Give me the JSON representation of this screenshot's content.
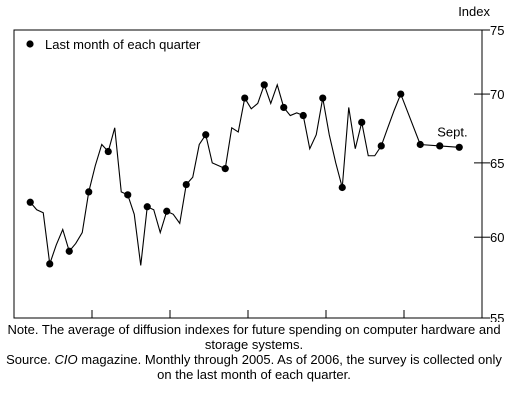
{
  "chart_data": {
    "type": "line",
    "y_label": "Index",
    "legend": "Last month of each quarter",
    "legend_corner": "top-left",
    "annotation": "Sept.",
    "color": "#000000",
    "log_scale": true,
    "x": [
      2001.2083,
      2001.2917,
      2001.375,
      2001.4583,
      2001.5417,
      2001.625,
      2001.7083,
      2001.7917,
      2001.875,
      2001.9583,
      2002.0417,
      2002.125,
      2002.2083,
      2002.2917,
      2002.375,
      2002.4583,
      2002.5417,
      2002.625,
      2002.7083,
      2002.7917,
      2002.875,
      2002.9583,
      2003.0417,
      2003.125,
      2003.2083,
      2003.2917,
      2003.375,
      2003.4583,
      2003.5417,
      2003.625,
      2003.7083,
      2003.7917,
      2003.875,
      2003.9583,
      2004.0417,
      2004.125,
      2004.2083,
      2004.2917,
      2004.375,
      2004.4583,
      2004.5417,
      2004.625,
      2004.7083,
      2004.7917,
      2004.875,
      2004.9583,
      2005.0417,
      2005.125,
      2005.2083,
      2005.2917,
      2005.375,
      2005.4583,
      2005.5417,
      2005.625,
      2005.7083,
      2005.7917,
      2005.875,
      2005.9583,
      2006.2083,
      2006.4583,
      2006.7083
    ],
    "values": [
      62.3,
      61.8,
      61.6,
      58.3,
      59.5,
      60.5,
      59.1,
      59.6,
      60.3,
      63.0,
      64.8,
      66.3,
      65.8,
      67.5,
      63.0,
      62.8,
      61.5,
      58.2,
      62.0,
      61.8,
      60.3,
      61.7,
      61.5,
      60.9,
      63.5,
      64.0,
      66.3,
      67.0,
      65.0,
      64.8,
      64.6,
      67.5,
      67.2,
      69.7,
      68.9,
      69.3,
      70.7,
      69.3,
      70.7,
      69.0,
      68.4,
      68.6,
      68.4,
      66.0,
      67.0,
      69.7,
      67.0,
      65.0,
      63.3,
      69.0,
      66.0,
      67.9,
      65.5,
      65.5,
      66.2,
      67.5,
      68.8,
      70.0,
      66.3,
      66.2,
      66.1
    ],
    "marked": [
      true,
      false,
      false,
      true,
      false,
      false,
      true,
      false,
      false,
      true,
      false,
      false,
      true,
      false,
      false,
      true,
      false,
      false,
      true,
      false,
      false,
      true,
      false,
      false,
      true,
      false,
      false,
      true,
      false,
      false,
      true,
      false,
      false,
      true,
      false,
      false,
      true,
      false,
      false,
      true,
      false,
      false,
      true,
      false,
      false,
      true,
      false,
      false,
      true,
      false,
      false,
      true,
      false,
      false,
      true,
      false,
      false,
      true,
      true,
      true,
      true
    ],
    "xlim": [
      2001,
      2007
    ],
    "xticks": [
      2001,
      2002,
      2003,
      2004,
      2005,
      2006
    ],
    "ylim": [
      55,
      75
    ],
    "yticks": [
      55,
      60,
      65,
      70,
      75
    ],
    "note": "Note. The average of diffusion indexes for future spending on computer hardware and storage systems.",
    "source_lead": "Source.",
    "source_italic": "CIO",
    "source_rest": "magazine. Monthly through 2005. As of 2006, the survey is collected only on the last month of each quarter."
  }
}
